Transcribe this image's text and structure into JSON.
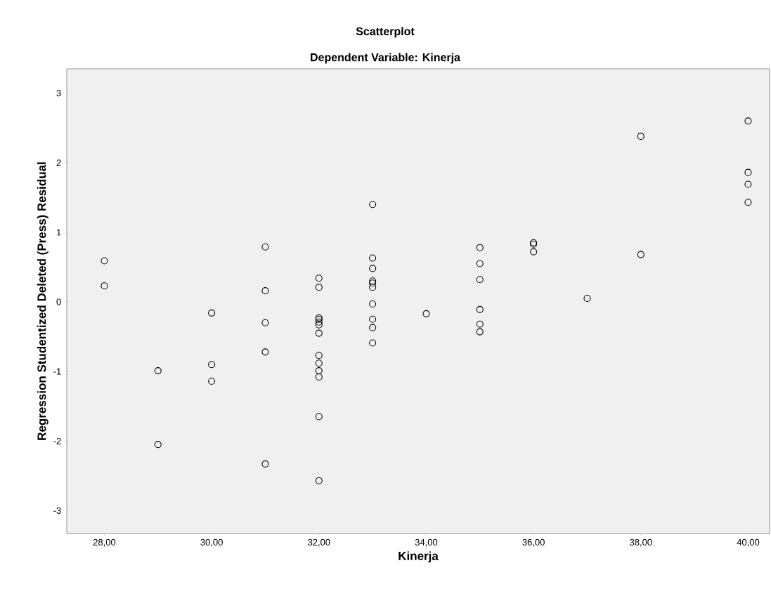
{
  "chart_data": {
    "type": "scatter",
    "title": "Scatterplot",
    "subtitle": "Dependent Variable: Kinerja",
    "xlabel": "Kinerja",
    "ylabel": "Regression Studentized Deleted (Press) Residual",
    "marker": "circle",
    "series": [
      {
        "color": "#000000",
        "x": [
          28,
          28,
          29,
          29,
          30,
          30,
          30,
          31,
          31,
          31,
          31,
          31,
          32,
          32,
          32,
          32,
          32,
          32,
          32,
          32,
          32,
          32,
          32,
          32,
          32,
          33,
          33,
          33,
          33,
          33,
          33,
          33,
          33,
          33,
          33,
          34,
          35,
          35,
          35,
          35,
          35,
          35,
          36,
          36,
          36,
          37,
          38,
          38,
          40,
          40,
          40,
          40
        ],
        "values": [
          0.59,
          0.23,
          -0.99,
          -2.05,
          -0.16,
          -0.9,
          -1.14,
          0.79,
          0.16,
          -0.3,
          -0.72,
          -2.33,
          0.34,
          0.21,
          -0.23,
          -0.25,
          -0.29,
          -0.45,
          -0.77,
          -0.88,
          -0.99,
          -1.08,
          -1.65,
          -2.57,
          -0.33,
          1.4,
          0.63,
          0.48,
          0.3,
          0.27,
          0.21,
          -0.03,
          -0.25,
          -0.37,
          -0.59,
          -0.17,
          0.78,
          0.55,
          0.32,
          -0.11,
          -0.32,
          -0.43,
          0.85,
          0.83,
          0.72,
          0.05,
          2.38,
          0.68,
          2.6,
          1.86,
          1.69,
          1.43
        ]
      }
    ],
    "xlim": [
      27.3,
      40.4
    ],
    "ylim": [
      -3.33,
      3.35
    ],
    "xticks": [
      {
        "value": 28,
        "label": "28,00"
      },
      {
        "value": 30,
        "label": "30,00"
      },
      {
        "value": 32,
        "label": "32,00"
      },
      {
        "value": 34,
        "label": "34,00"
      },
      {
        "value": 36,
        "label": "36,00"
      },
      {
        "value": 38,
        "label": "38,00"
      },
      {
        "value": 40,
        "label": "40,00"
      }
    ],
    "yticks": [
      -3,
      -2,
      -1,
      0,
      1,
      2,
      3
    ]
  }
}
